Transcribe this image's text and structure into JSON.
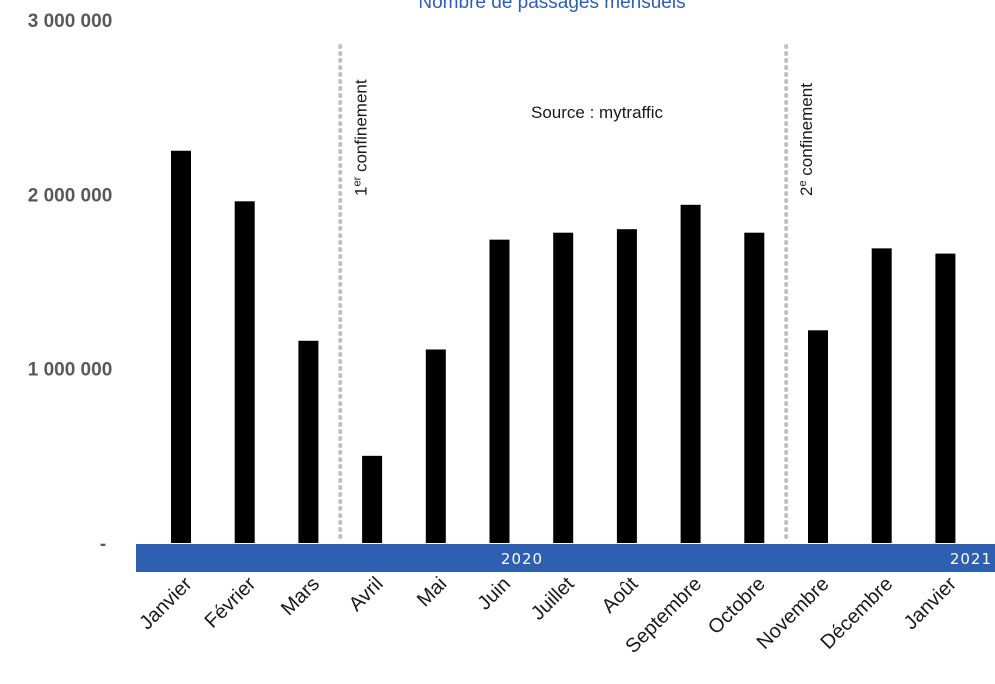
{
  "chart_data": {
    "type": "bar",
    "title": "Nombre de passages mensuels",
    "source": "Source : mytraffic",
    "categories": [
      "Janvier",
      "Février",
      "Mars",
      "Avril",
      "Mai",
      "Juin",
      "Juillet",
      "Août",
      "Septembre",
      "Octobre",
      "Novembre",
      "Décembre",
      "Janvier"
    ],
    "values": [
      2250000,
      1960000,
      1160000,
      500000,
      1110000,
      1740000,
      1780000,
      1800000,
      1940000,
      1780000,
      1220000,
      1690000,
      1660000
    ],
    "ylim": [
      0,
      3000000
    ],
    "yticks": [
      {
        "value": 0,
        "label": "-"
      },
      {
        "value": 1000000,
        "label": "1 000 000"
      },
      {
        "value": 2000000,
        "label": "2 000 000"
      },
      {
        "value": 3000000,
        "label": "3 000 000"
      }
    ],
    "bar_color": "#000000",
    "year_band_color": "#2e5fb0",
    "years": [
      {
        "label": "2020",
        "from_index": 0,
        "to_index": 11
      },
      {
        "label": "2021",
        "from_index": 12,
        "to_index": 12
      }
    ],
    "annotations": [
      {
        "label_main": "1",
        "label_sup": "er",
        "label_rest": " confinement",
        "between_index": 2.5
      },
      {
        "label_main": "2",
        "label_sup": "e",
        "label_rest": " confinement",
        "between_index": 9.5
      }
    ]
  }
}
